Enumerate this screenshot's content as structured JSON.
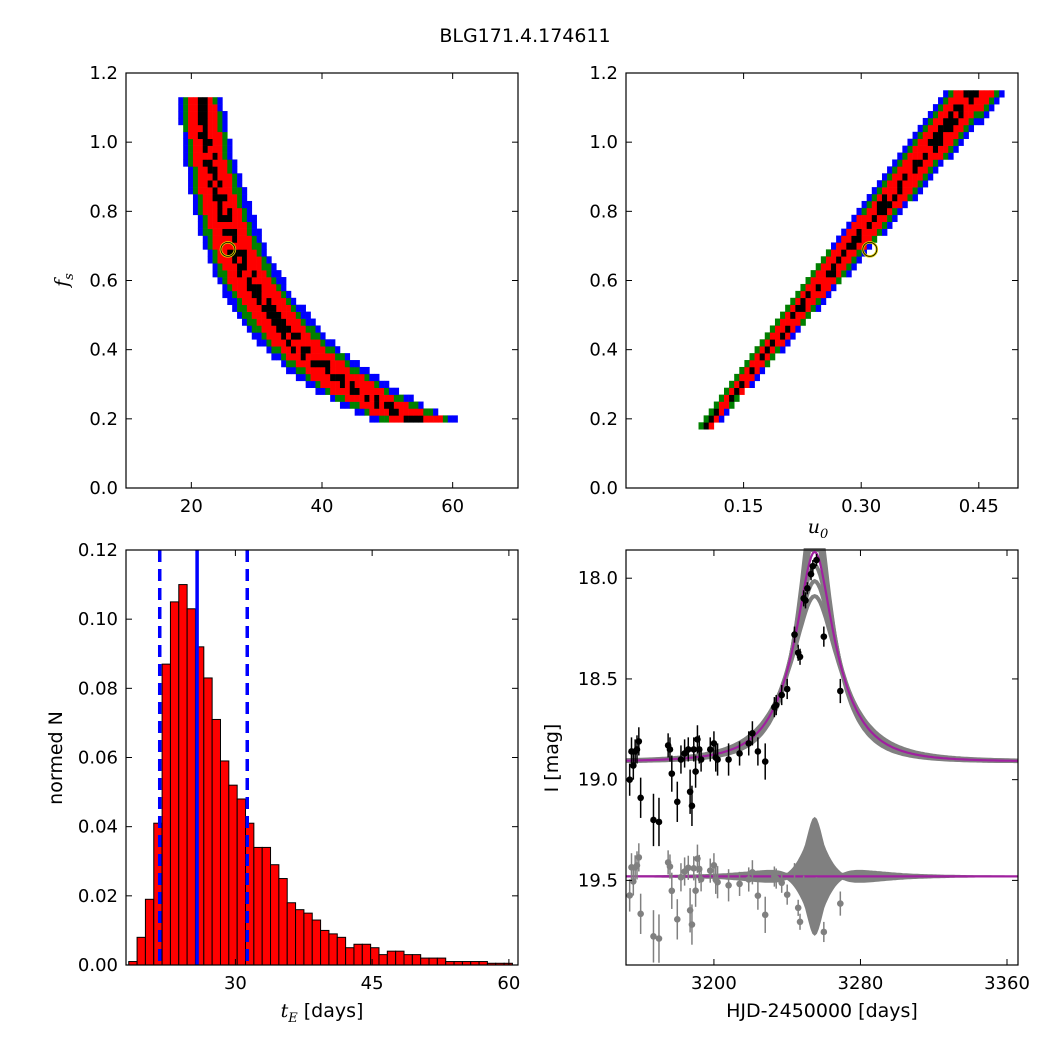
{
  "figure": {
    "title": "BLG171.4.174611"
  },
  "chart_data": [
    {
      "id": "panel-fs-vs-tE",
      "type": "heatmap",
      "xlabel": "",
      "ylabel": {
        "symbol": "f",
        "sub": "s"
      },
      "xlim": [
        10,
        70
      ],
      "ylim": [
        0.0,
        1.2
      ],
      "xticks": [
        20,
        40,
        60
      ],
      "yticks": [
        0.0,
        0.2,
        0.4,
        0.6,
        0.8,
        1.0,
        1.2
      ],
      "ytick_labels": [
        "0.0",
        "0.2",
        "0.4",
        "0.6",
        "0.8",
        "1.0",
        "1.2"
      ],
      "best_fit": {
        "x": 25.6,
        "y": 0.69
      },
      "regions": [
        {
          "level": "3-sigma",
          "color": "#0000ff"
        },
        {
          "level": "2-sigma",
          "color": "#008000"
        },
        {
          "level": "1-sigma",
          "color": "#ff0000"
        },
        {
          "level": "peak",
          "color": "#000000"
        }
      ],
      "ridge": {
        "x": [
          21.0,
          21.5,
          22.2,
          23.2,
          24.3,
          25.6,
          27.2,
          29.5,
          32.5,
          36.0,
          40.5,
          45.0,
          50.0,
          55.0
        ],
        "y": [
          1.14,
          1.05,
          0.97,
          0.89,
          0.81,
          0.73,
          0.65,
          0.57,
          0.49,
          0.41,
          0.34,
          0.28,
          0.23,
          0.19
        ]
      }
    },
    {
      "id": "panel-fs-vs-u0",
      "type": "heatmap",
      "xlabel": {
        "symbol": "u",
        "sub": "0"
      },
      "ylabel": "",
      "xlim": [
        0.0,
        0.5
      ],
      "ylim": [
        0.0,
        1.2
      ],
      "xticks": [
        0.15,
        0.3,
        0.45
      ],
      "xtick_labels": [
        "0.15",
        "0.30",
        "0.45"
      ],
      "yticks": [
        0.0,
        0.2,
        0.4,
        0.6,
        0.8,
        1.0,
        1.2
      ],
      "ytick_labels": [
        "0.0",
        "0.2",
        "0.4",
        "0.6",
        "0.8",
        "1.0",
        "1.2"
      ],
      "best_fit": {
        "x": 0.311,
        "y": 0.69
      },
      "regions": [
        {
          "level": "3-sigma",
          "color": "#0000ff"
        },
        {
          "level": "2-sigma",
          "color": "#008000"
        },
        {
          "level": "1-sigma",
          "color": "#ff0000"
        },
        {
          "level": "peak",
          "color": "#000000"
        }
      ],
      "ridge": {
        "u0_start": 0.1,
        "fs_start": 0.18,
        "u0_end": 0.44,
        "fs_end": 1.14
      }
    },
    {
      "id": "panel-tE-histogram",
      "type": "bar",
      "xlabel": {
        "symbol": "t",
        "sub": "E",
        "rest": " [days]"
      },
      "ylabel": "normed N",
      "xlim": [
        18,
        61
      ],
      "ylim": [
        0.0,
        0.12
      ],
      "xticks": [
        30,
        45,
        60
      ],
      "yticks": [
        0.0,
        0.02,
        0.04,
        0.06,
        0.08,
        0.1,
        0.12
      ],
      "ytick_labels": [
        "0.00",
        "0.02",
        "0.04",
        "0.06",
        "0.08",
        "0.10",
        "0.12"
      ],
      "bar_color": "#ff0000",
      "bin_start": 18.3,
      "bin_width": 0.915,
      "values": [
        0.001,
        0.008,
        0.019,
        0.041,
        0.087,
        0.105,
        0.11,
        0.103,
        0.092,
        0.083,
        0.071,
        0.059,
        0.052,
        0.048,
        0.041,
        0.034,
        0.034,
        0.029,
        0.025,
        0.018,
        0.016,
        0.015,
        0.013,
        0.01,
        0.009,
        0.008,
        0.005,
        0.006,
        0.006,
        0.005,
        0.003,
        0.004,
        0.004,
        0.003,
        0.003,
        0.002,
        0.002,
        0.002,
        0.001,
        0.001,
        0.001,
        0.001,
        0.001,
        0.0005,
        0.0005,
        0.0005
      ],
      "median": 25.8,
      "lower": 21.7,
      "upper": 31.3,
      "line_color": "#0000ff"
    },
    {
      "id": "panel-lightcurve",
      "type": "scatter",
      "xlabel": "HJD-2450000 [days]",
      "ylabel": "I [mag]",
      "xlim": [
        3152,
        3366
      ],
      "ylim": [
        19.92,
        17.86
      ],
      "y_inverted": true,
      "xticks": [
        3200,
        3280,
        3360
      ],
      "yticks": [
        18.0,
        18.5,
        19.0,
        19.5
      ],
      "ytick_labels": [
        "18.0",
        "18.5",
        "19.0",
        "19.5"
      ],
      "model": {
        "t0": 3255.0,
        "tE": 25.6,
        "u0": 0.311,
        "fs": 0.69,
        "baseline": 18.91,
        "color": "#a020a0",
        "band_color": "#808080"
      },
      "residual_offset": 19.48,
      "data_color": "#000000",
      "residual_color": "#808080",
      "points": [
        [
          3154,
          19.0,
          0.08
        ],
        [
          3155,
          18.86,
          0.07
        ],
        [
          3156,
          18.93,
          0.07
        ],
        [
          3157,
          18.86,
          0.06
        ],
        [
          3158,
          18.85,
          0.07
        ],
        [
          3159,
          18.81,
          0.07
        ],
        [
          3160,
          19.09,
          0.1
        ],
        [
          3167,
          19.2,
          0.13
        ],
        [
          3170,
          19.21,
          0.12
        ],
        [
          3175,
          18.83,
          0.06
        ],
        [
          3176,
          18.85,
          0.06
        ],
        [
          3177,
          18.97,
          0.09
        ],
        [
          3180,
          19.11,
          0.1
        ],
        [
          3182,
          18.9,
          0.07
        ],
        [
          3184,
          18.87,
          0.07
        ],
        [
          3186,
          18.85,
          0.06
        ],
        [
          3187,
          19.06,
          0.11
        ],
        [
          3188,
          19.13,
          0.1
        ],
        [
          3189,
          18.85,
          0.06
        ],
        [
          3190,
          18.96,
          0.08
        ],
        [
          3191,
          18.8,
          0.07
        ],
        [
          3192,
          18.85,
          0.07
        ],
        [
          3193,
          18.9,
          0.06
        ],
        [
          3198,
          18.85,
          0.06
        ],
        [
          3200,
          18.82,
          0.06
        ],
        [
          3201,
          18.89,
          0.07
        ],
        [
          3202,
          18.9,
          0.08
        ],
        [
          3208,
          18.9,
          0.08
        ],
        [
          3214,
          18.87,
          0.06
        ],
        [
          3219,
          18.82,
          0.06
        ],
        [
          3221,
          18.77,
          0.06
        ],
        [
          3224,
          18.86,
          0.07
        ],
        [
          3228,
          18.91,
          0.09
        ],
        [
          3233,
          18.64,
          0.05
        ],
        [
          3234,
          18.63,
          0.05
        ],
        [
          3237,
          18.58,
          0.05
        ],
        [
          3240,
          18.55,
          0.05
        ],
        [
          3244,
          18.28,
          0.04
        ],
        [
          3246,
          18.37,
          0.04
        ],
        [
          3247,
          18.39,
          0.04
        ],
        [
          3249,
          18.1,
          0.04
        ],
        [
          3250,
          18.11,
          0.04
        ],
        [
          3251,
          18.05,
          0.03
        ],
        [
          3253,
          17.98,
          0.03
        ],
        [
          3254,
          17.94,
          0.03
        ],
        [
          3256,
          17.91,
          0.03
        ],
        [
          3260,
          18.29,
          0.05
        ],
        [
          3269,
          18.56,
          0.06
        ]
      ]
    }
  ]
}
